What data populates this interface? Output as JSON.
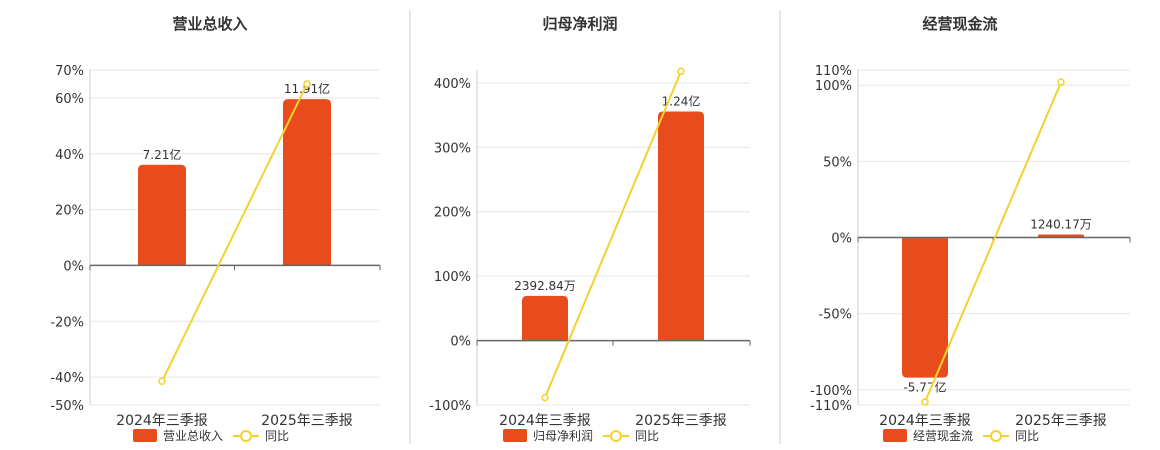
{
  "theme": {
    "bar_color": "#e84c1c",
    "line_color": "#f3d22e",
    "axis_color": "#666666",
    "grid_color": "#e6e6e6",
    "divider_color": "#cccccc",
    "text_color": "#333333"
  },
  "chart_data": [
    {
      "type": "bar",
      "title": "营业总收入",
      "categories": [
        "2024年三季报",
        "2025年三季报"
      ],
      "series": [
        {
          "name": "营业总收入",
          "type": "bar",
          "values": [
            36.04,
            59.55
          ],
          "labels": [
            "7.21亿",
            "11.91亿"
          ]
        },
        {
          "name": "同比",
          "type": "line",
          "values": [
            -41.5,
            65.0
          ]
        }
      ],
      "y_ticks": [
        "70%",
        "60%",
        "40%",
        "20%",
        "0%",
        "-20%",
        "-40%",
        "-50%"
      ],
      "ylim": [
        -50,
        70
      ],
      "grid": true,
      "legend": "bottom"
    },
    {
      "type": "bar",
      "title": "归母净利润",
      "categories": [
        "2024年三季报",
        "2025年三季报"
      ],
      "series": [
        {
          "name": "归母净利润",
          "type": "bar",
          "values": [
            69.4,
            355.5
          ],
          "labels": [
            "2392.84万",
            "1.24亿"
          ]
        },
        {
          "name": "同比",
          "type": "line",
          "values": [
            -88.5,
            418.0
          ]
        }
      ],
      "y_ticks": [
        "400%",
        "300%",
        "200%",
        "100%",
        "0%",
        "-100%"
      ],
      "ylim": [
        -100,
        420
      ],
      "grid": true,
      "legend": "bottom"
    },
    {
      "type": "bar",
      "title": "经营现金流",
      "categories": [
        "2024年三季报",
        "2025年三季报"
      ],
      "series": [
        {
          "name": "经营现金流",
          "type": "bar",
          "values": [
            -92.0,
            2.0
          ],
          "labels": [
            "-5.77亿",
            "1240.17万"
          ]
        },
        {
          "name": "同比",
          "type": "line",
          "values": [
            -108.0,
            102.0
          ]
        }
      ],
      "y_ticks": [
        "110%",
        "100%",
        "50%",
        "0%",
        "-50%",
        "-100%",
        "-110%"
      ],
      "ylim": [
        -110,
        110
      ],
      "grid": true,
      "legend": "bottom"
    }
  ]
}
